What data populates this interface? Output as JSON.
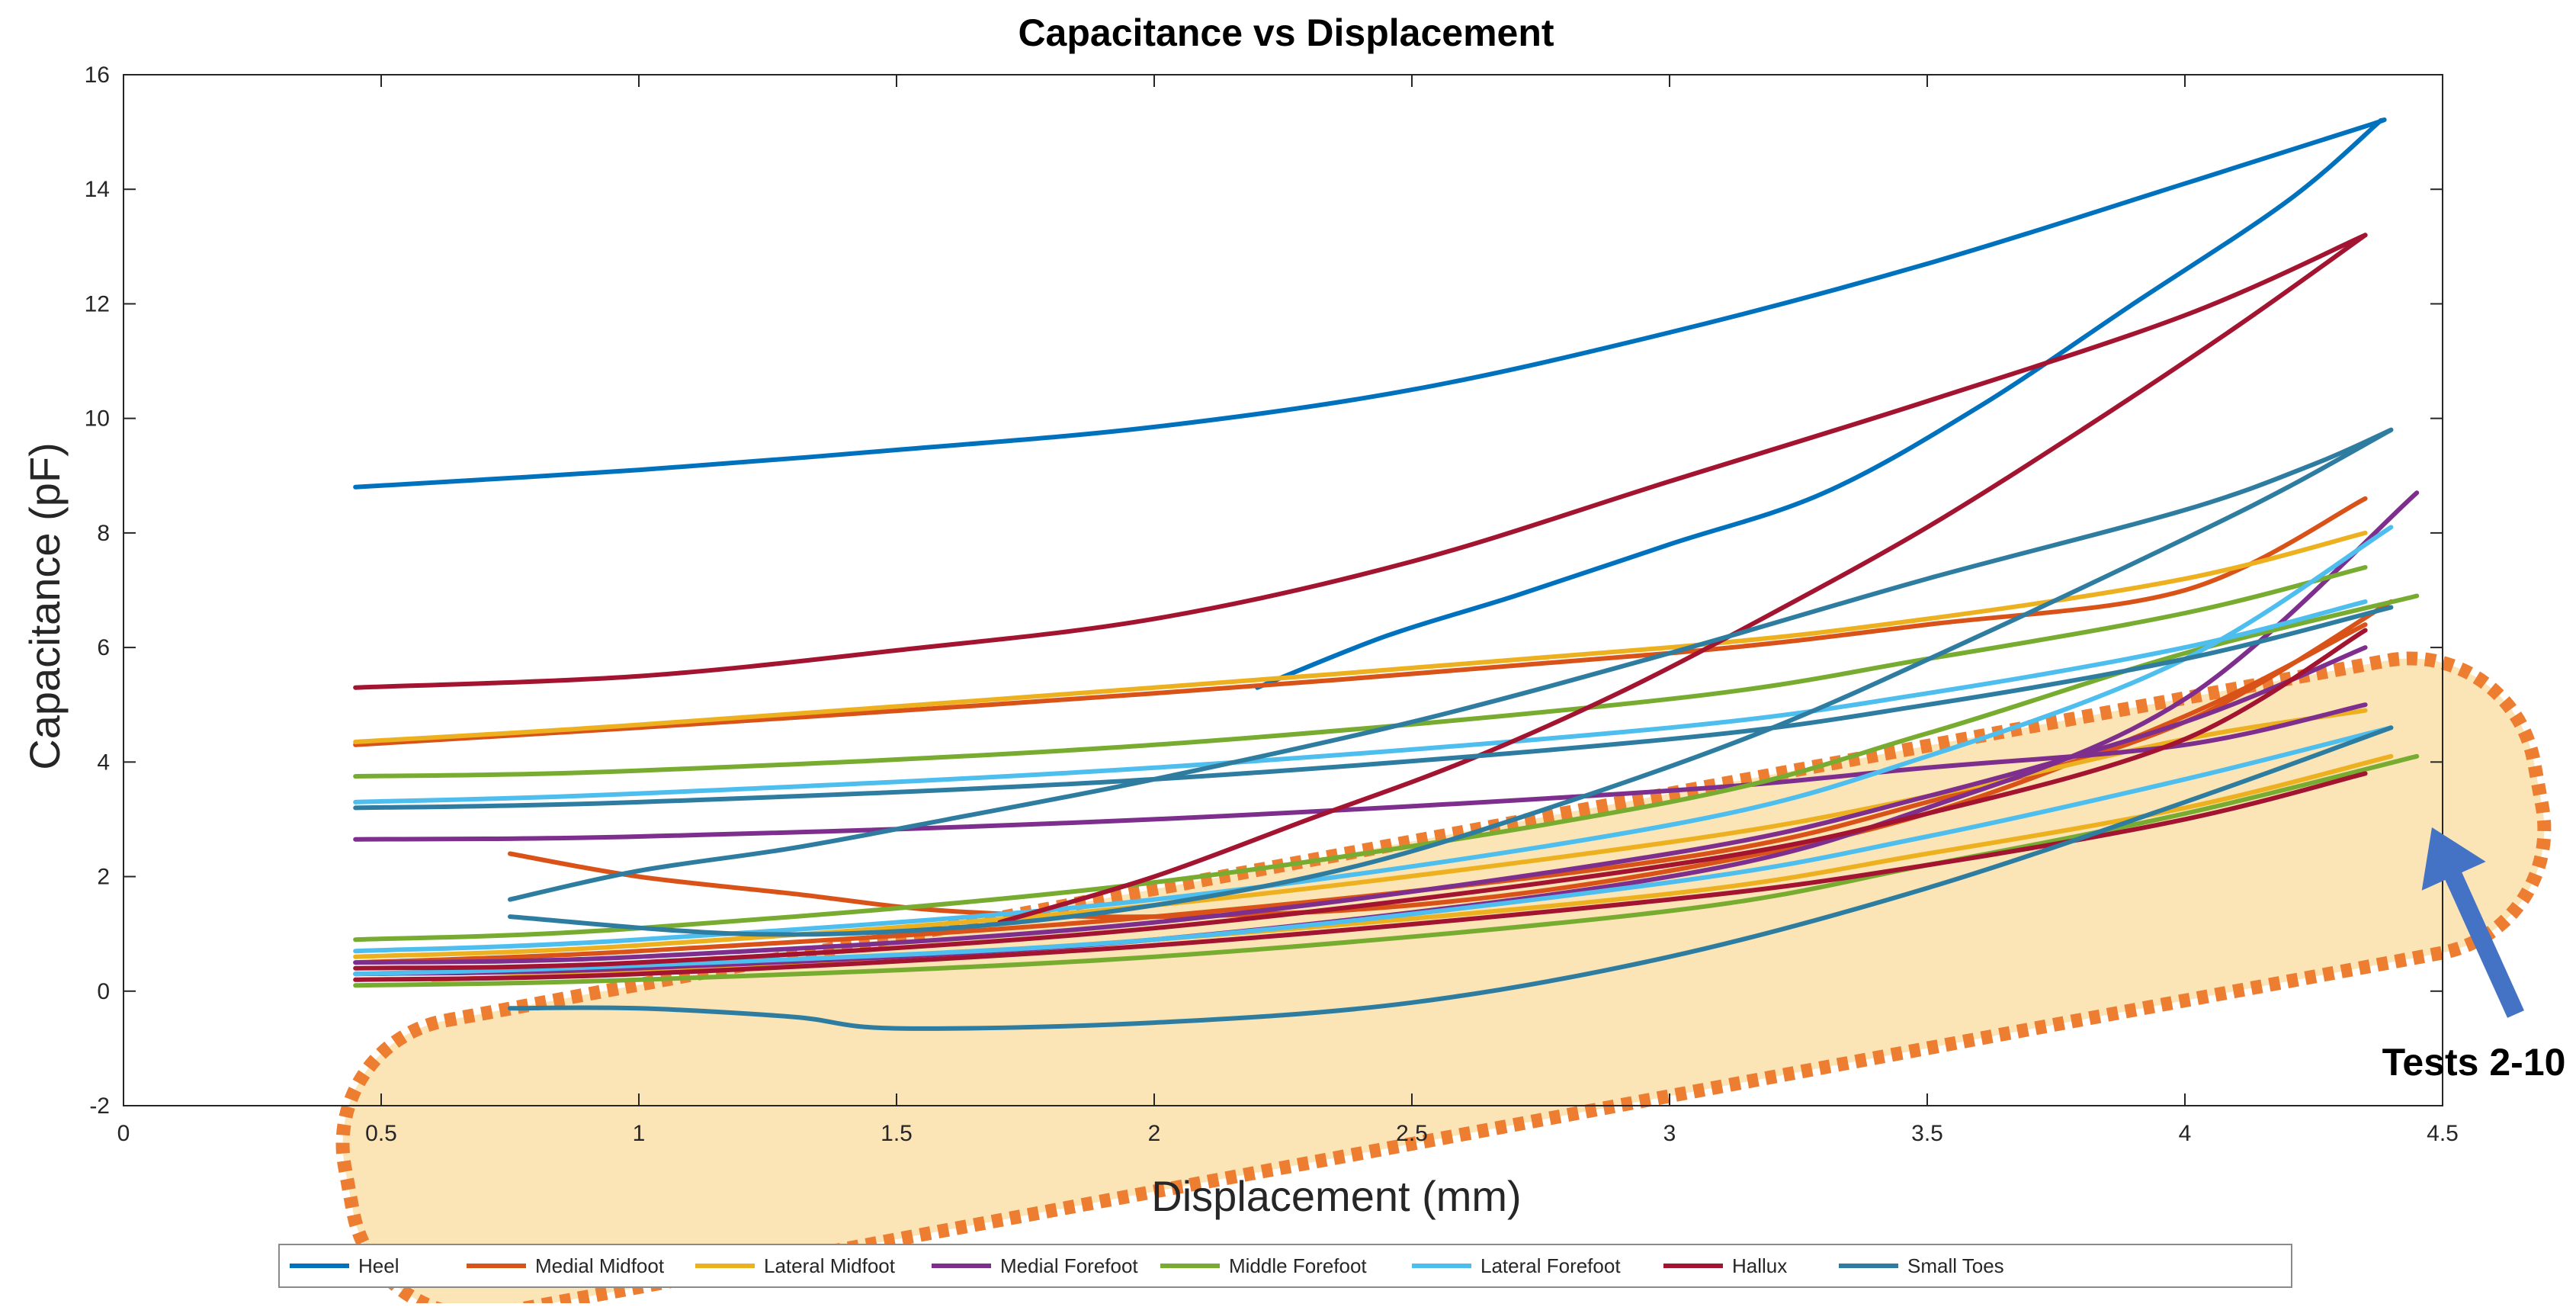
{
  "chart_data": {
    "type": "line",
    "title": "Capacitance vs Displacement",
    "xlabel": "Displacement (mm)",
    "ylabel": "Capacitance (pF)",
    "xlim": [
      0,
      4.5
    ],
    "ylim": [
      -2,
      16
    ],
    "xticks": [
      0,
      0.5,
      1,
      1.5,
      2,
      2.5,
      3,
      3.5,
      4,
      4.5
    ],
    "yticks": [
      -2,
      0,
      2,
      4,
      6,
      8,
      10,
      12,
      14,
      16
    ],
    "xtick_labels": [
      "0",
      "0.5",
      "1",
      "1.5",
      "2",
      "2.5",
      "3",
      "3.5",
      "4",
      "4.5"
    ],
    "ytick_labels": [
      "-2",
      "0",
      "2",
      "4",
      "6",
      "8",
      "10",
      "12",
      "14",
      "16"
    ],
    "grid": false,
    "legend_position": "bottom",
    "series": [
      {
        "name": "Heel",
        "color": "#0072BD",
        "curves": [
          {
            "x": [
              0.45,
              1.0,
              1.5,
              2.0,
              2.5,
              3.0,
              3.5,
              4.0,
              4.35,
              4.38
            ],
            "y": [
              8.8,
              9.1,
              9.45,
              9.85,
              10.5,
              11.5,
              12.7,
              14.1,
              15.1,
              15.2
            ]
          },
          {
            "x": [
              4.38,
              4.2,
              3.9,
              3.6,
              3.3,
              3.0,
              2.7,
              2.45,
              2.2
            ],
            "y": [
              15.2,
              13.8,
              12.0,
              10.2,
              8.7,
              7.8,
              6.9,
              6.2,
              5.3
            ]
          }
        ]
      },
      {
        "name": "Medial Midfoot",
        "color": "#D95319",
        "curves": [
          {
            "x": [
              0.45,
              1.0,
              2.0,
              3.0,
              3.5,
              4.0,
              4.35
            ],
            "y": [
              4.3,
              4.6,
              5.2,
              5.9,
              6.4,
              7.0,
              8.6
            ]
          },
          {
            "x": [
              0.75,
              1.0,
              1.3,
              1.6,
              2.0,
              2.5,
              3.0,
              3.5,
              4.0,
              4.35
            ],
            "y": [
              2.4,
              2.0,
              1.7,
              1.4,
              1.3,
              1.5,
              2.1,
              3.1,
              4.8,
              6.4
            ]
          },
          {
            "x": [
              0.45,
              1.0,
              2.0,
              3.0,
              3.5,
              4.0,
              4.4
            ],
            "y": [
              0.5,
              0.7,
              1.3,
              2.3,
              3.3,
              4.7,
              6.8
            ]
          }
        ]
      },
      {
        "name": "Lateral Midfoot",
        "color": "#EDB120",
        "curves": [
          {
            "x": [
              0.45,
              1.0,
              2.0,
              3.0,
              3.5,
              4.0,
              4.35
            ],
            "y": [
              4.35,
              4.65,
              5.3,
              6.0,
              6.5,
              7.2,
              8.0
            ]
          },
          {
            "x": [
              0.45,
              1.0,
              2.0,
              3.0,
              3.5,
              4.0,
              4.35
            ],
            "y": [
              0.6,
              0.8,
              1.5,
              2.6,
              3.4,
              4.4,
              4.9
            ]
          },
          {
            "x": [
              0.6,
              1.0,
              2.0,
              3.0,
              3.5,
              4.0,
              4.4
            ],
            "y": [
              0.2,
              0.35,
              0.9,
              1.7,
              2.4,
              3.2,
              4.1
            ]
          }
        ]
      },
      {
        "name": "Medial Forefoot",
        "color": "#7E2F8E",
        "curves": [
          {
            "x": [
              0.45,
              1.0,
              2.0,
              3.0,
              3.5,
              4.0,
              4.35
            ],
            "y": [
              2.65,
              2.7,
              3.0,
              3.5,
              3.9,
              4.3,
              5.0
            ]
          },
          {
            "x": [
              0.45,
              1.0,
              2.0,
              3.0,
              3.5,
              4.0,
              4.45
            ],
            "y": [
              0.3,
              0.4,
              0.9,
              2.0,
              3.2,
              5.1,
              8.7
            ]
          },
          {
            "x": [
              0.45,
              1.0,
              2.0,
              3.0,
              3.5,
              4.0,
              4.35
            ],
            "y": [
              0.5,
              0.6,
              1.2,
              2.4,
              3.4,
              4.7,
              6.0
            ]
          }
        ]
      },
      {
        "name": "Middle Forefoot",
        "color": "#77AC30",
        "curves": [
          {
            "x": [
              0.45,
              1.0,
              2.0,
              3.0,
              3.5,
              4.0,
              4.35
            ],
            "y": [
              3.75,
              3.85,
              4.3,
              5.1,
              5.8,
              6.6,
              7.4
            ]
          },
          {
            "x": [
              0.45,
              1.0,
              2.0,
              3.0,
              3.5,
              4.0,
              4.45
            ],
            "y": [
              0.9,
              1.1,
              1.9,
              3.3,
              4.5,
              5.9,
              6.9
            ]
          },
          {
            "x": [
              0.45,
              1.0,
              2.0,
              3.0,
              3.5,
              4.0,
              4.45
            ],
            "y": [
              0.1,
              0.2,
              0.6,
              1.4,
              2.2,
              3.1,
              4.1
            ]
          }
        ]
      },
      {
        "name": "Lateral Forefoot",
        "color": "#4DBEEE",
        "curves": [
          {
            "x": [
              0.45,
              1.0,
              2.0,
              3.0,
              3.5,
              4.0,
              4.35
            ],
            "y": [
              3.3,
              3.45,
              3.9,
              4.6,
              5.2,
              6.0,
              6.8
            ]
          },
          {
            "x": [
              0.45,
              1.0,
              2.0,
              3.0,
              3.5,
              4.0,
              4.4
            ],
            "y": [
              0.7,
              0.9,
              1.6,
              2.9,
              4.1,
              5.8,
              8.1
            ]
          },
          {
            "x": [
              0.45,
              1.0,
              2.0,
              3.0,
              3.5,
              4.0,
              4.4
            ],
            "y": [
              0.3,
              0.45,
              0.9,
              1.9,
              2.7,
              3.7,
              4.6
            ]
          }
        ]
      },
      {
        "name": "Hallux",
        "color": "#A2142F",
        "curves": [
          {
            "x": [
              0.45,
              1.0,
              1.5,
              2.0,
              2.5,
              3.0,
              3.5,
              4.0,
              4.35
            ],
            "y": [
              5.3,
              5.5,
              5.95,
              6.5,
              7.5,
              8.9,
              10.3,
              11.8,
              13.2
            ]
          },
          {
            "x": [
              4.35,
              4.1,
              3.8,
              3.5,
              3.2,
              2.9,
              2.6,
              2.3,
              2.0,
              1.7
            ],
            "y": [
              13.2,
              11.6,
              9.8,
              8.1,
              6.6,
              5.2,
              4.0,
              3.0,
              2.0,
              1.2
            ]
          },
          {
            "x": [
              0.45,
              1.0,
              2.0,
              3.0,
              3.5,
              4.0,
              4.35
            ],
            "y": [
              0.2,
              0.3,
              0.8,
              1.6,
              2.2,
              3.0,
              3.8
            ]
          },
          {
            "x": [
              0.45,
              1.0,
              2.0,
              3.0,
              3.5,
              4.0,
              4.35
            ],
            "y": [
              0.4,
              0.5,
              1.1,
              2.2,
              3.1,
              4.4,
              6.3
            ]
          }
        ]
      },
      {
        "name": "Small Toes",
        "color": "#2E7DA0",
        "curves": [
          {
            "x": [
              0.45,
              1.0,
              2.0,
              3.0,
              3.5,
              4.0,
              4.4
            ],
            "y": [
              3.2,
              3.3,
              3.7,
              4.4,
              5.0,
              5.8,
              6.7
            ]
          },
          {
            "x": [
              0.75,
              1.0,
              1.3,
              1.6,
              2.0,
              2.5,
              3.0,
              3.5,
              4.0,
              4.25,
              4.4
            ],
            "y": [
              1.6,
              2.1,
              2.5,
              3.0,
              3.7,
              4.7,
              5.9,
              7.2,
              8.4,
              9.2,
              9.8
            ]
          },
          {
            "x": [
              4.4,
              4.2,
              4.0,
              3.6,
              3.2,
              2.8,
              2.4,
              2.0,
              1.6,
              1.2,
              0.75
            ],
            "y": [
              9.8,
              8.8,
              7.9,
              6.2,
              4.6,
              3.3,
              2.2,
              1.5,
              1.1,
              1.0,
              1.3
            ]
          },
          {
            "x": [
              0.75,
              1.0,
              1.3,
              1.5,
              2.0,
              2.5,
              3.0,
              3.5,
              4.0,
              4.4
            ],
            "y": [
              -0.3,
              -0.3,
              -0.45,
              -0.65,
              -0.55,
              -0.2,
              0.6,
              1.8,
              3.3,
              4.6
            ]
          }
        ]
      }
    ],
    "annotation": {
      "text": "Tests 2-10",
      "arrow_color": "#4472C4",
      "highlight_fill": "#FBE5B6",
      "highlight_stroke": "#ED7D31"
    }
  }
}
